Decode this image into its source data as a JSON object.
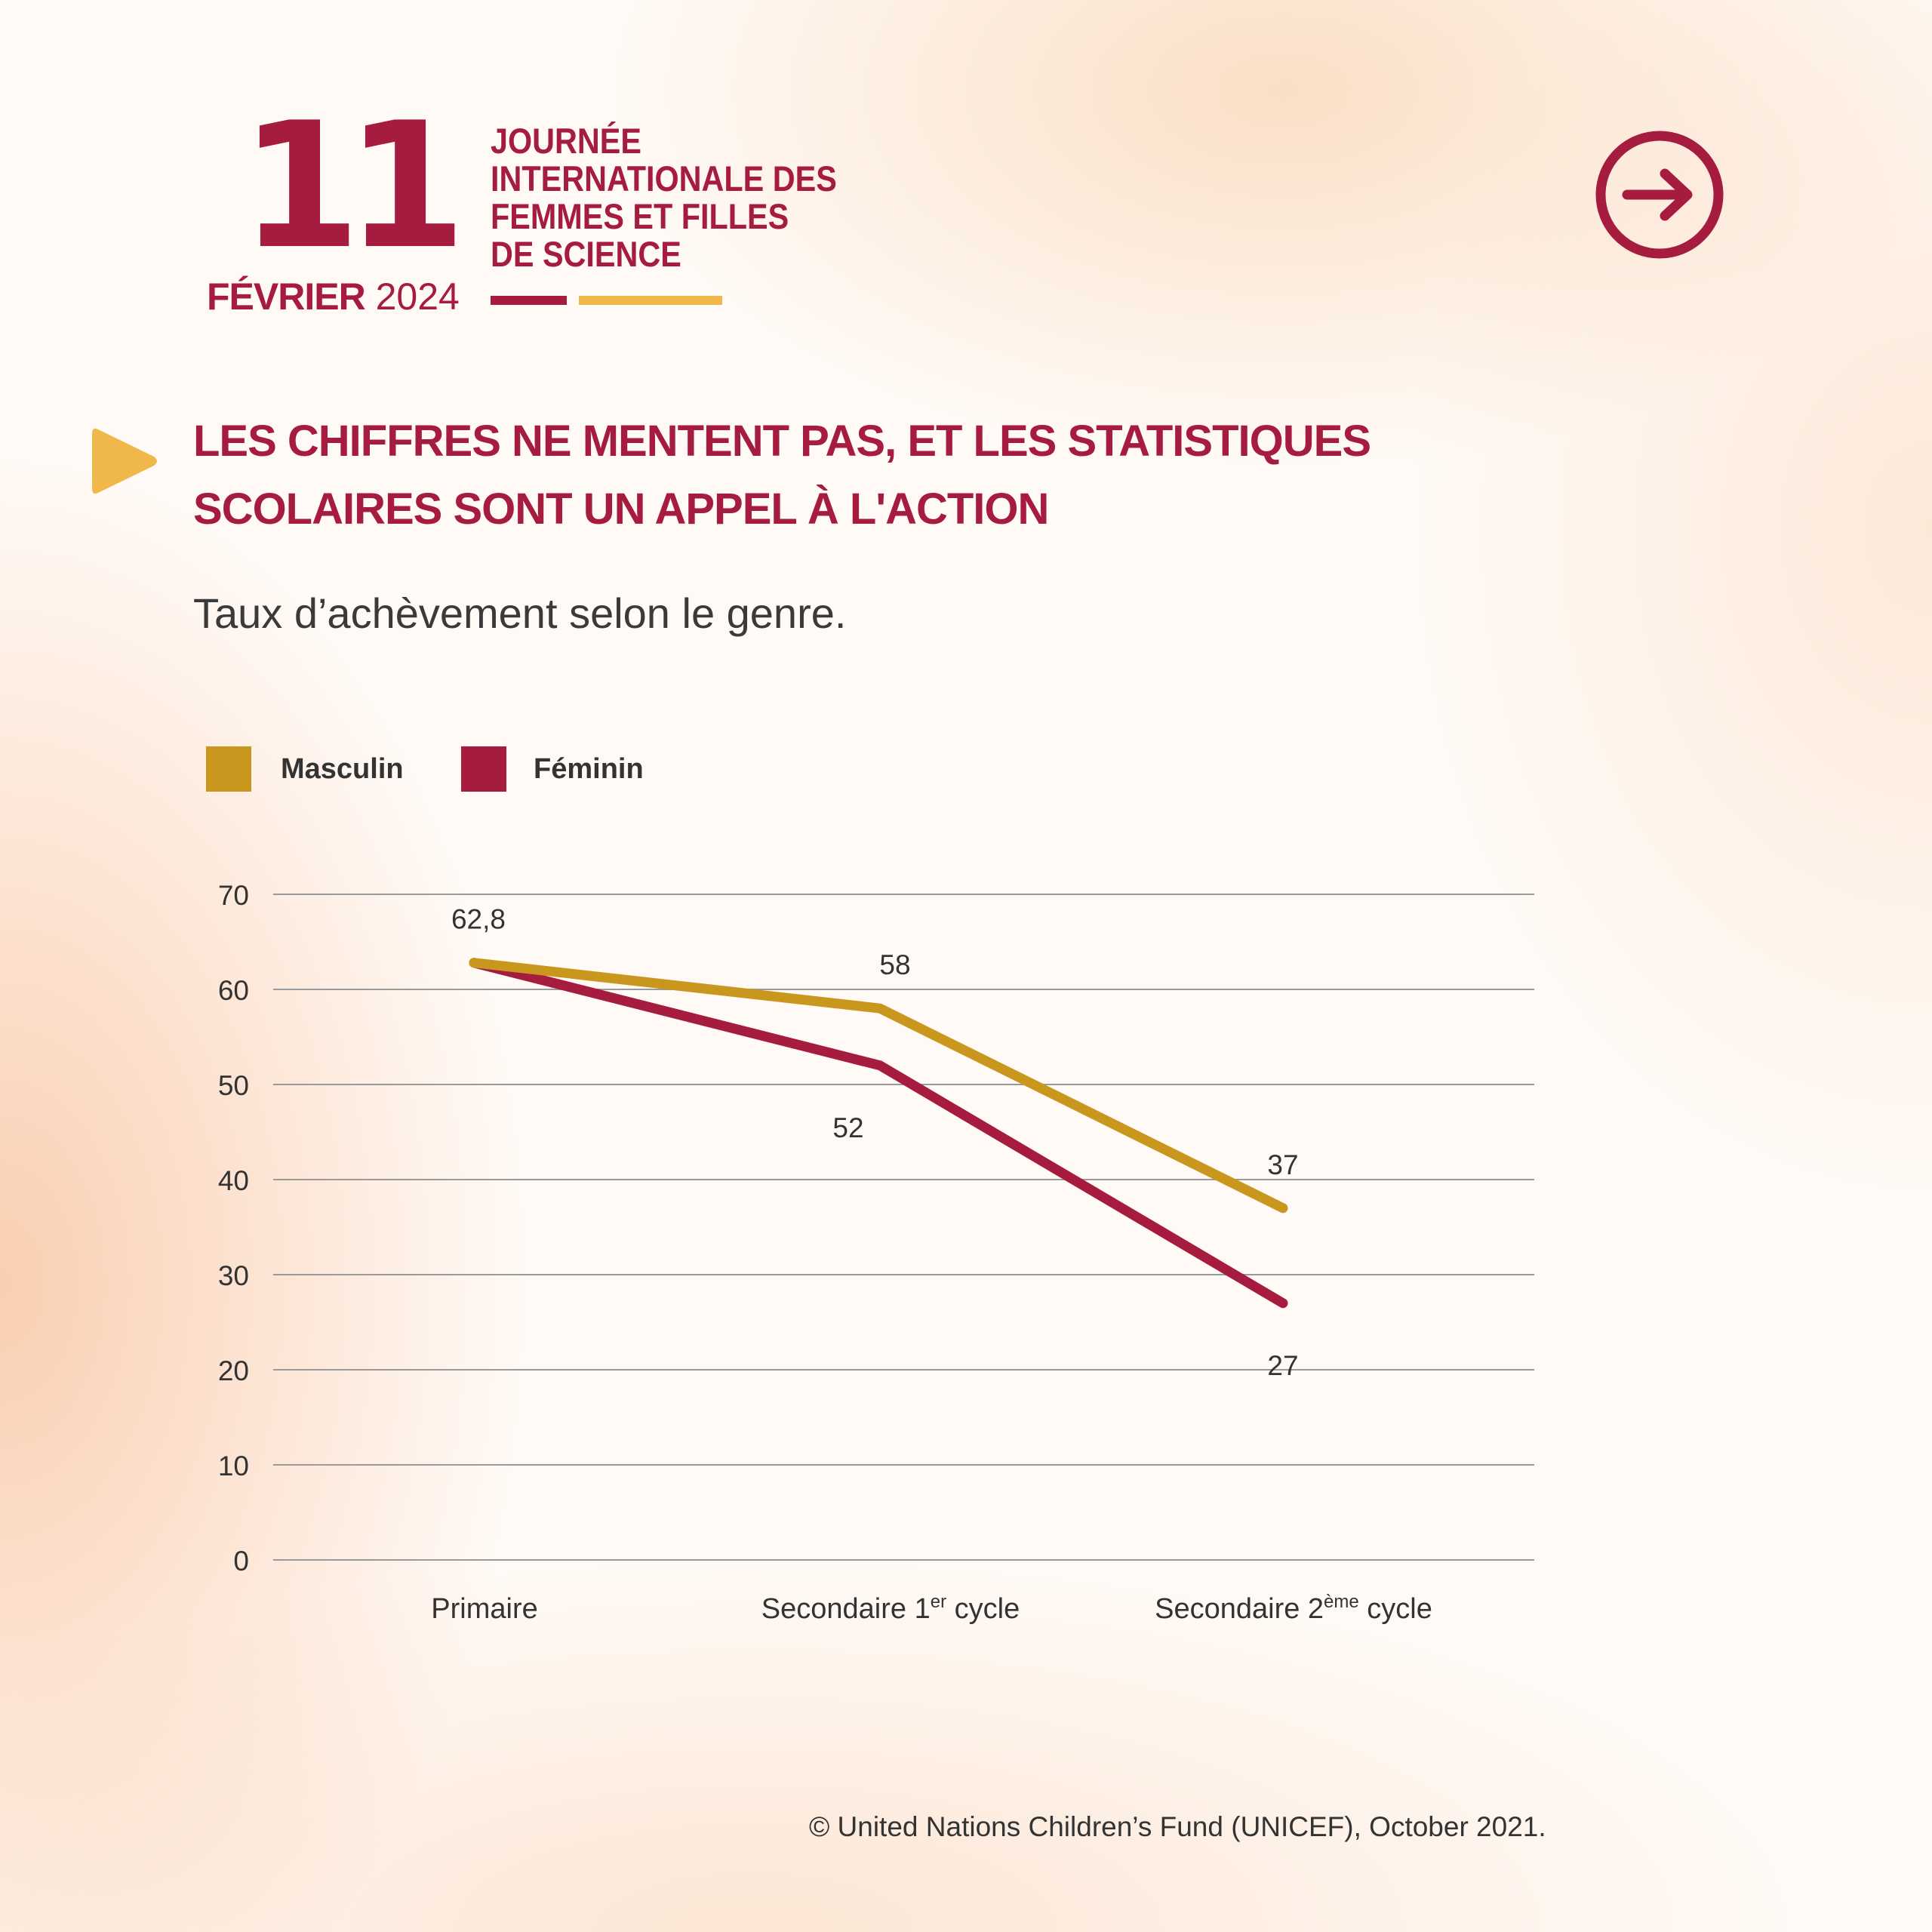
{
  "header": {
    "day": "11",
    "month": "FÉVRIER",
    "year": "2024",
    "event_lines": [
      "JOURNÉE",
      "INTERNATIONALE DES",
      "FEMMES ET FILLES",
      "DE SCIENCE"
    ],
    "next_icon": "arrow-right-circle-icon",
    "play_icon": "play-triangle-icon"
  },
  "colors": {
    "red": "#a51c3f",
    "mustard": "#c9961e",
    "yellow": "#f0b84a"
  },
  "heading": [
    "LES CHIFFRES NE MENTENT PAS, ET LES STATISTIQUES",
    "SCOLAIRES SONT UN APPEL À L'ACTION"
  ],
  "subtitle": "Taux d’achèvement selon le genre.",
  "chart_data": {
    "type": "line",
    "title": "Taux d’achèvement selon le genre.",
    "categories": [
      {
        "base": "Primaire",
        "sup": "",
        "rest": ""
      },
      {
        "base": "Secondaire 1",
        "sup": "er",
        "rest": " cycle"
      },
      {
        "base": "Secondaire 2",
        "sup": "ème",
        "rest": " cycle"
      }
    ],
    "series": [
      {
        "name": "Masculin",
        "color": "#c9961e",
        "values": [
          62.8,
          58,
          37
        ],
        "labels": [
          "",
          "58",
          "37"
        ],
        "label_pos": [
          "",
          "above",
          "above"
        ]
      },
      {
        "name": "Féminin",
        "color": "#a51c3f",
        "values": [
          62.8,
          52,
          27
        ],
        "labels": [
          "62,8",
          "52",
          "27"
        ],
        "label_pos": [
          "above",
          "below",
          "below"
        ]
      }
    ],
    "ylim": [
      0,
      70
    ],
    "yticks": [
      "0",
      "10",
      "20",
      "30",
      "40",
      "50",
      "60",
      "70"
    ],
    "grid": true,
    "legend": "top-left"
  },
  "footer": "© United Nations Children’s Fund (UNICEF), October 2021."
}
